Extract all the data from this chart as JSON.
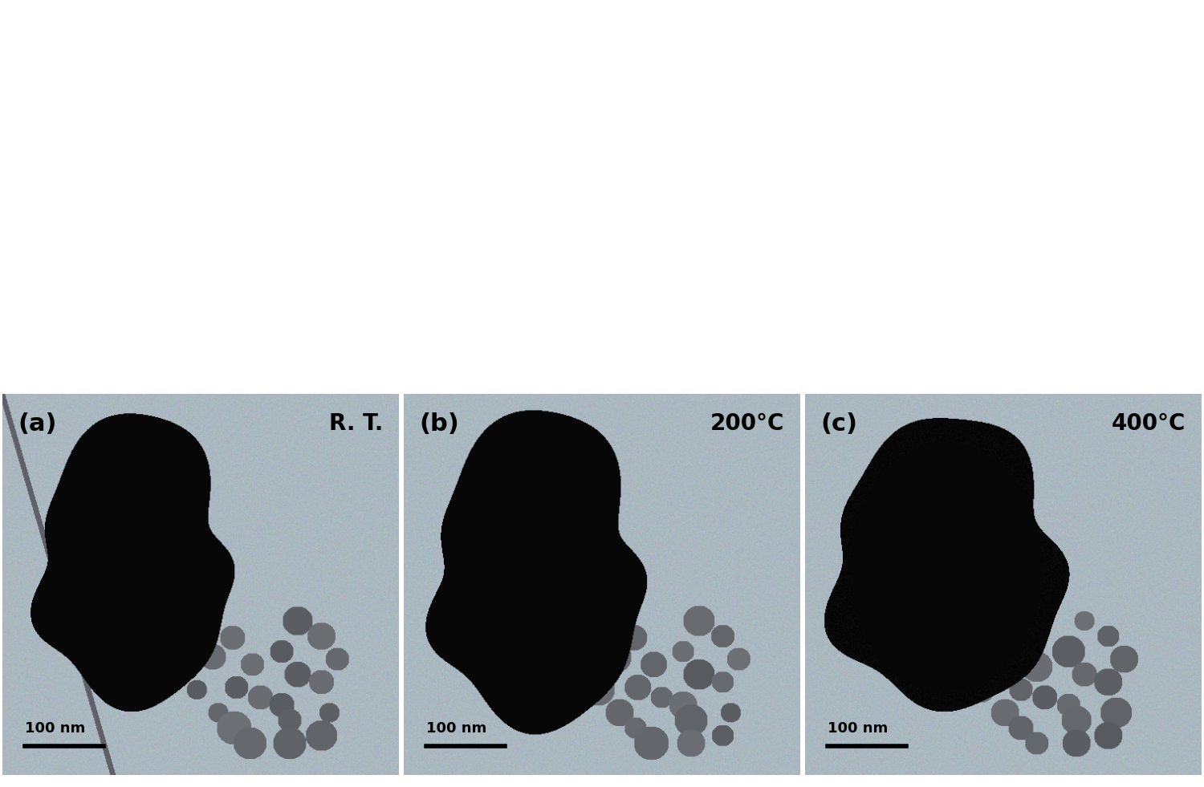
{
  "figsize": [
    15.0,
    9.81
  ],
  "dpi": 100,
  "panel_labels": [
    "(a)",
    "(b)",
    "(c)"
  ],
  "temp_labels": [
    "R. T.",
    "200°C",
    "400°C"
  ],
  "scale_bar_text": "100 nm",
  "bg_tem": "#aab8c0",
  "bg_diff": "#000000"
}
